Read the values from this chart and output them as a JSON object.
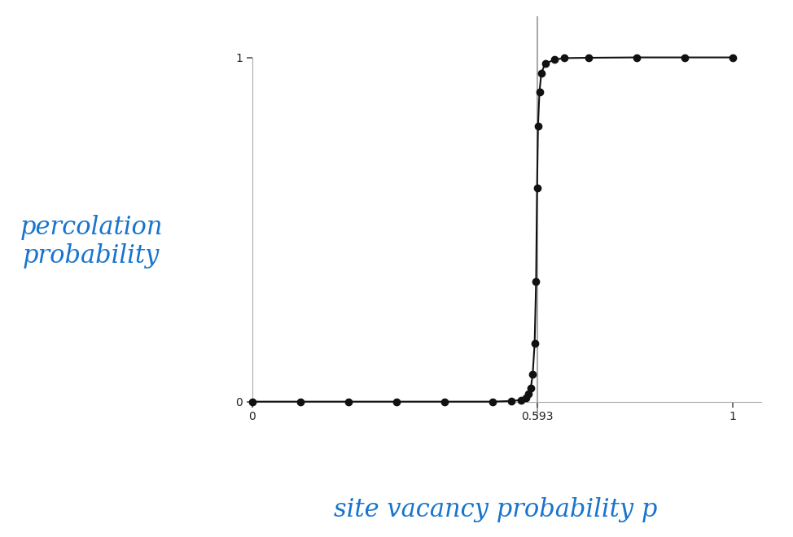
{
  "title": "",
  "ylabel_text": "percolation\nprobability",
  "xlabel_text": "site vacancy probability p",
  "ylabel_color": "#1874CD",
  "xlabel_color": "#1874CD",
  "threshold": 0.593,
  "axis_color": "#aaaaaa",
  "line_color": "#111111",
  "dot_color": "#111111",
  "background_color": "#ffffff",
  "x_data": [
    0.0,
    0.1,
    0.2,
    0.3,
    0.4,
    0.5,
    0.54,
    0.56,
    0.57,
    0.575,
    0.58,
    0.584,
    0.588,
    0.591,
    0.593,
    0.595,
    0.598,
    0.602,
    0.61,
    0.63,
    0.65,
    0.7,
    0.8,
    0.9,
    1.0
  ],
  "y_data": [
    0.0,
    0.0,
    0.0,
    0.0,
    0.0,
    0.0,
    0.002,
    0.005,
    0.012,
    0.022,
    0.04,
    0.08,
    0.17,
    0.35,
    0.62,
    0.8,
    0.9,
    0.955,
    0.982,
    0.994,
    0.998,
    0.999,
    1.0,
    1.0,
    1.0
  ],
  "xtick_positions": [
    0,
    0.593,
    1
  ],
  "xtick_labels": [
    "0",
    "0.593",
    "1"
  ],
  "ytick_positions": [
    0,
    1
  ],
  "ytick_labels": [
    "0",
    "1"
  ],
  "xlabel_fontsize": 22,
  "ylabel_fontsize": 22,
  "tick_fontsize": 20,
  "dot_size": 6
}
